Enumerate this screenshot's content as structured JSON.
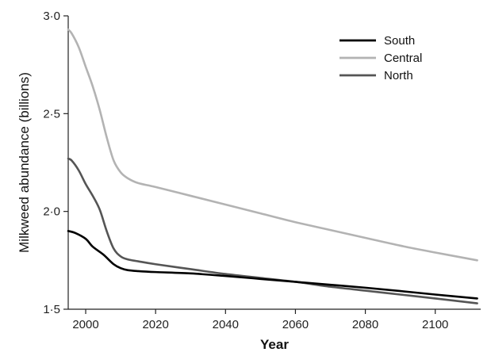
{
  "chart_data": {
    "type": "line",
    "xlabel": "Year",
    "ylabel": "Milkweed abundance (billions)",
    "xlim": [
      1995,
      2113
    ],
    "ylim": [
      1.5,
      3.0
    ],
    "x_ticks": [
      2000,
      2020,
      2040,
      2060,
      2080,
      2100
    ],
    "x_tick_labels": [
      "2000",
      "2020",
      "2040",
      "2060",
      "2080",
      "2100"
    ],
    "y_ticks": [
      1.5,
      2.0,
      2.5,
      3.0
    ],
    "y_tick_labels": [
      "1·5",
      "2·0",
      "2·5",
      "3·0"
    ],
    "grid": false,
    "legend_position": "top-right",
    "series": [
      {
        "name": "South",
        "color": "#000000",
        "x": [
          1995,
          1997,
          2000,
          2002,
          2005,
          2008,
          2010,
          2012,
          2015,
          2020,
          2030,
          2040,
          2050,
          2060,
          2070,
          2080,
          2090,
          2100,
          2112
        ],
        "y": [
          1.9,
          1.89,
          1.86,
          1.82,
          1.78,
          1.73,
          1.71,
          1.7,
          1.695,
          1.69,
          1.683,
          1.67,
          1.655,
          1.64,
          1.625,
          1.61,
          1.593,
          1.575,
          1.555
        ]
      },
      {
        "name": "Central",
        "color": "#b3b3b3",
        "x": [
          1995,
          1996,
          1998,
          2000,
          2002,
          2004,
          2006,
          2008,
          2010,
          2012,
          2015,
          2020,
          2030,
          2040,
          2050,
          2060,
          2070,
          2080,
          2090,
          2100,
          2112
        ],
        "y": [
          2.93,
          2.91,
          2.84,
          2.74,
          2.64,
          2.52,
          2.38,
          2.26,
          2.2,
          2.17,
          2.145,
          2.125,
          2.08,
          2.035,
          1.99,
          1.945,
          1.905,
          1.865,
          1.825,
          1.79,
          1.75
        ]
      },
      {
        "name": "North",
        "color": "#555555",
        "x": [
          1995,
          1996,
          1998,
          2000,
          2002,
          2004,
          2006,
          2008,
          2010,
          2012,
          2015,
          2020,
          2030,
          2040,
          2050,
          2060,
          2070,
          2080,
          2090,
          2100,
          2112
        ],
        "y": [
          2.27,
          2.26,
          2.21,
          2.14,
          2.08,
          2.01,
          1.9,
          1.81,
          1.77,
          1.755,
          1.745,
          1.73,
          1.705,
          1.68,
          1.66,
          1.64,
          1.615,
          1.595,
          1.575,
          1.555,
          1.53
        ]
      }
    ]
  }
}
